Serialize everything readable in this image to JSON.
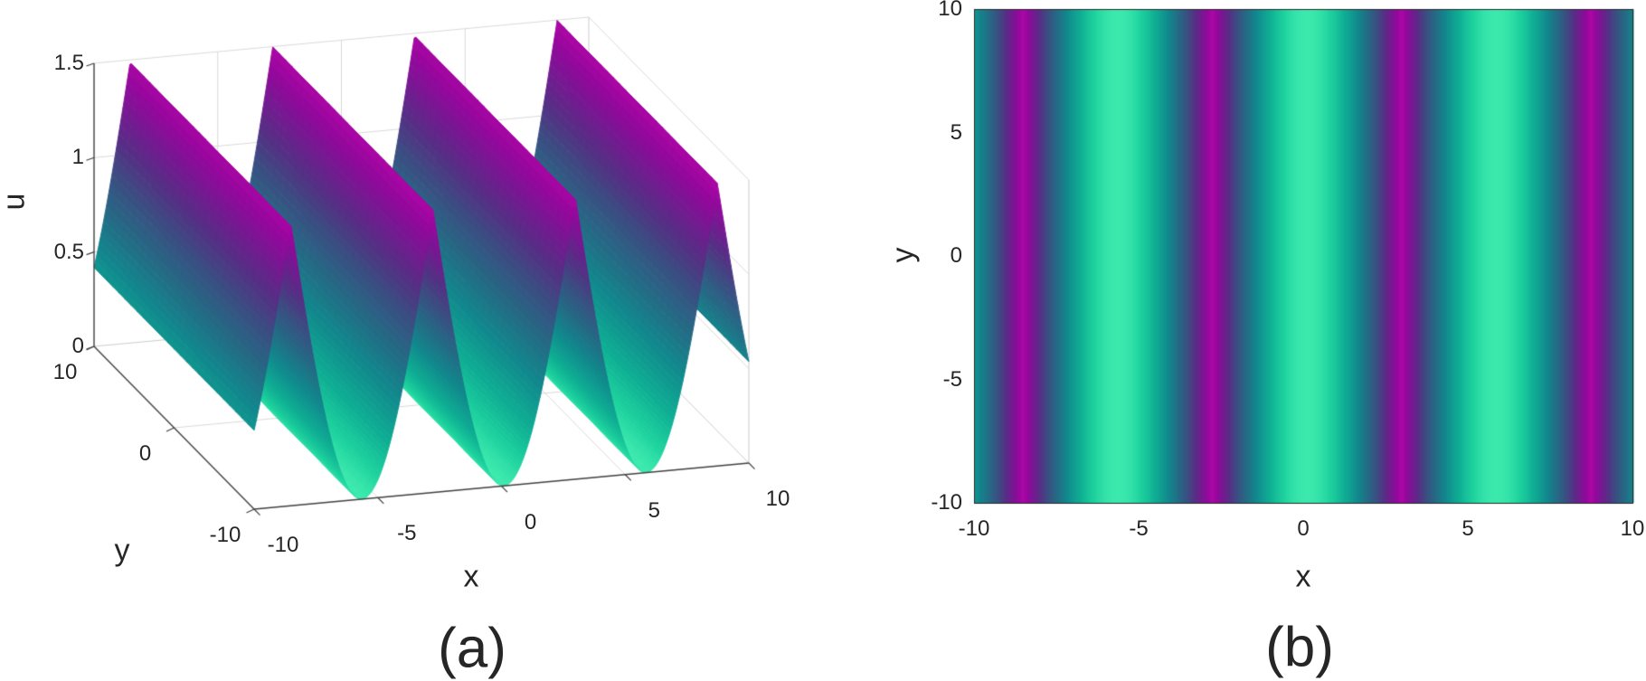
{
  "figure": {
    "background": "#ffffff",
    "text_color": "#262626",
    "description": "Two-panel figure: (a) 3D surface plot of periodic wave u(x,y), (b) top-view density plot of the same wave"
  },
  "chart_data": [
    {
      "panel": "a",
      "type": "surface",
      "caption": "(a)",
      "xlabel": "x",
      "ylabel": "y",
      "zlabel": "u",
      "xlim": [
        -10,
        10
      ],
      "ylim": [
        -10,
        10
      ],
      "zlim": [
        0,
        1.5
      ],
      "xticks": [
        -10,
        -5,
        0,
        5,
        10
      ],
      "yticks": [
        10,
        0,
        -10
      ],
      "zticks": [
        0,
        0.5,
        1,
        1.5
      ],
      "grid": true,
      "view": "MATLAB-style 3D view from front-left; grid on back wall, right wall and floor",
      "wave": {
        "amplitude": 1.5,
        "period": 5.75,
        "phase": 0.1,
        "formula": "u(x,y) ≈ 1.5·(1 − |cos(π(x−0.1)/5.75)|), uniform along y"
      },
      "x_of_minima": [
        -5.65,
        0.1,
        5.85
      ],
      "x_of_maxima": [
        -8.53,
        -2.78,
        2.98,
        8.73
      ],
      "cross_section": {
        "x": [
          -10,
          -9.5,
          -9,
          -8.5,
          -8,
          -7.5,
          -7,
          -6.5,
          -6,
          -5.5,
          -5,
          -4.5,
          -4,
          -3.5,
          -3,
          -2.5,
          -2,
          -1.5,
          -1,
          -0.5,
          0,
          0.5,
          1,
          1.5,
          2,
          2.5,
          3,
          3.5,
          4,
          4.5,
          5,
          5.5,
          6,
          6.5,
          7,
          7.5,
          8,
          8.5,
          9,
          9.5,
          10
        ],
        "u": [
          0.418,
          0.737,
          1.114,
          1.479,
          1.074,
          0.704,
          0.39,
          0.159,
          0.027,
          0.005,
          0.093,
          0.287,
          0.567,
          0.919,
          1.316,
          1.275,
          0.883,
          0.536,
          0.263,
          0.08,
          0.002,
          0.036,
          0.178,
          0.418,
          0.737,
          1.114,
          1.479,
          1.074,
          0.704,
          0.39,
          0.159,
          0.027,
          0.001,
          0.093,
          0.287,
          0.567,
          0.919,
          1.316,
          1.275,
          0.883,
          0.536
        ]
      }
    },
    {
      "panel": "b",
      "type": "heatmap",
      "caption": "(b)",
      "xlabel": "x",
      "ylabel": "y",
      "xlim": [
        -10,
        10
      ],
      "ylim": [
        -10,
        10
      ],
      "xticks": [
        -10,
        -5,
        0,
        5,
        10
      ],
      "yticks": [
        10,
        5,
        0,
        -5,
        -10
      ],
      "description": "Vertical stripes independent of y: thin bright mint lines at wave minima, magenta bands at wave maxima",
      "wave": {
        "amplitude": 1.5,
        "period": 5.75,
        "phase": 0.1,
        "formula": "u(x,y) ≈ 1.5·(1 − |cos(π(x−0.1)/5.75)|), uniform along y"
      }
    }
  ],
  "colormap": {
    "name": "mint→teal→blue→purple→magenta, mapped to u ∈ [0, 1.5]",
    "stops": [
      [
        0.0,
        "#3be9ad"
      ],
      [
        0.07,
        "#1ed29e"
      ],
      [
        0.18,
        "#0faf94"
      ],
      [
        0.33,
        "#11898d"
      ],
      [
        0.47,
        "#256a85"
      ],
      [
        0.6,
        "#3b4e82"
      ],
      [
        0.72,
        "#562f85"
      ],
      [
        0.84,
        "#7a1693"
      ],
      [
        0.93,
        "#96079d"
      ],
      [
        1.0,
        "#ad07a6"
      ]
    ]
  }
}
